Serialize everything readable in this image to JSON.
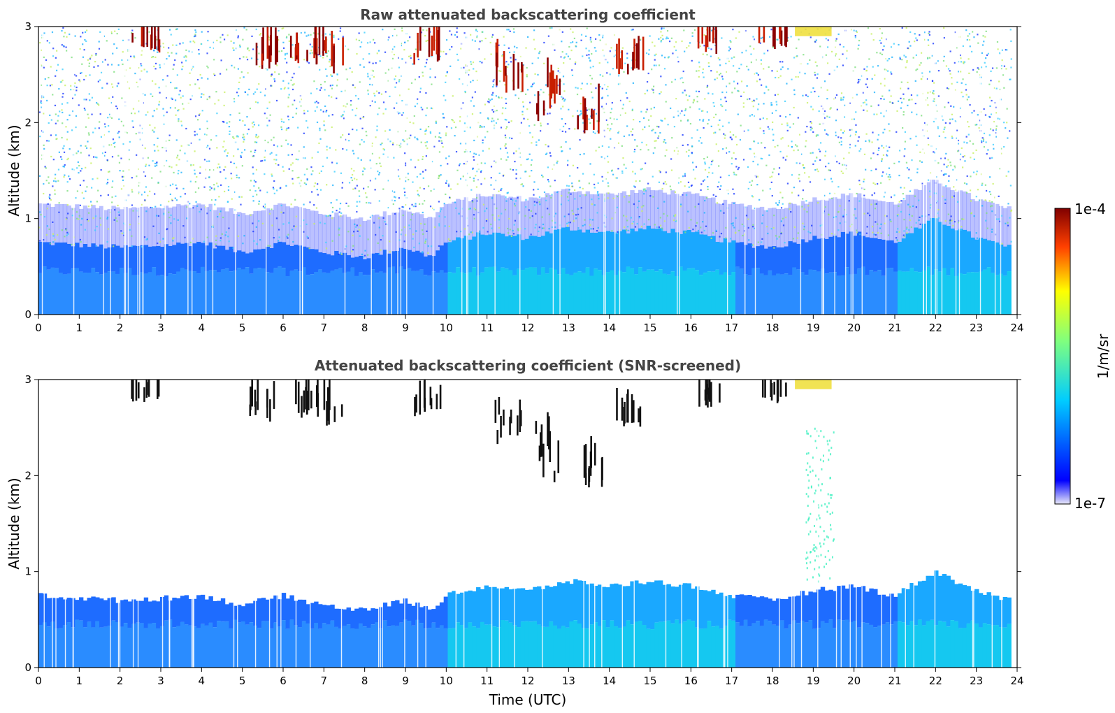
{
  "chart_data": [
    {
      "type": "heatmap",
      "title": "Raw attenuated backscattering coefficient",
      "xlabel": "",
      "ylabel": "Altitude (km)",
      "xlim": [
        0,
        24
      ],
      "ylim": [
        0,
        3
      ],
      "x_ticks": [
        "0",
        "1",
        "2",
        "3",
        "4",
        "5",
        "6",
        "7",
        "8",
        "9",
        "10",
        "11",
        "12",
        "13",
        "14",
        "15",
        "16",
        "17",
        "18",
        "19",
        "20",
        "21",
        "22",
        "23",
        "24"
      ],
      "y_ticks": [
        "0",
        "1",
        "2",
        "3"
      ],
      "screened": false,
      "boundary_layer_top_km": [
        [
          0,
          0.75
        ],
        [
          2,
          0.7
        ],
        [
          3,
          0.72
        ],
        [
          4,
          0.75
        ],
        [
          5,
          0.65
        ],
        [
          6,
          0.75
        ],
        [
          7,
          0.65
        ],
        [
          8,
          0.6
        ],
        [
          9,
          0.7
        ],
        [
          9.6,
          0.6
        ],
        [
          10,
          0.75
        ],
        [
          11,
          0.85
        ],
        [
          12,
          0.8
        ],
        [
          13,
          0.9
        ],
        [
          14,
          0.85
        ],
        [
          15,
          0.9
        ],
        [
          16,
          0.85
        ],
        [
          17,
          0.75
        ],
        [
          18,
          0.7
        ],
        [
          19,
          0.8
        ],
        [
          20,
          0.85
        ],
        [
          21,
          0.75
        ],
        [
          22,
          1.0
        ],
        [
          23,
          0.8
        ],
        [
          23.8,
          0.7
        ]
      ],
      "cloud_patches_km": [
        [
          2.6,
          2.7,
          3.0
        ],
        [
          5.5,
          2.55,
          2.9
        ],
        [
          6.5,
          2.6,
          2.9
        ],
        [
          7.1,
          2.5,
          3.0
        ],
        [
          9.5,
          2.6,
          2.9
        ],
        [
          11.5,
          2.3,
          3.0
        ],
        [
          12.5,
          1.9,
          3.0
        ],
        [
          13.5,
          1.85,
          2.4
        ],
        [
          14.5,
          2.5,
          2.65
        ],
        [
          16.5,
          2.7,
          3.0
        ],
        [
          18,
          2.75,
          3.0
        ]
      ]
    },
    {
      "type": "heatmap",
      "title": "Attenuated backscattering coefficient (SNR-screened)",
      "xlabel": "Time (UTC)",
      "ylabel": "Altitude (km)",
      "xlim": [
        0,
        24
      ],
      "ylim": [
        0,
        3
      ],
      "x_ticks": [
        "0",
        "1",
        "2",
        "3",
        "4",
        "5",
        "6",
        "7",
        "8",
        "9",
        "10",
        "11",
        "12",
        "13",
        "14",
        "15",
        "16",
        "17",
        "18",
        "19",
        "20",
        "21",
        "22",
        "23",
        "24"
      ],
      "y_ticks": [
        "0",
        "1",
        "2",
        "3"
      ],
      "screened": true
    }
  ],
  "colorbar": {
    "label": "1/m/sr",
    "max_label": "1e-4",
    "min_label": "1e-7",
    "scale": "log",
    "colormap": "jet",
    "colors": [
      "#e8e8f8",
      "#0000ff",
      "#00ccff",
      "#7fff7f",
      "#ffff00",
      "#ff4000",
      "#800000"
    ]
  }
}
